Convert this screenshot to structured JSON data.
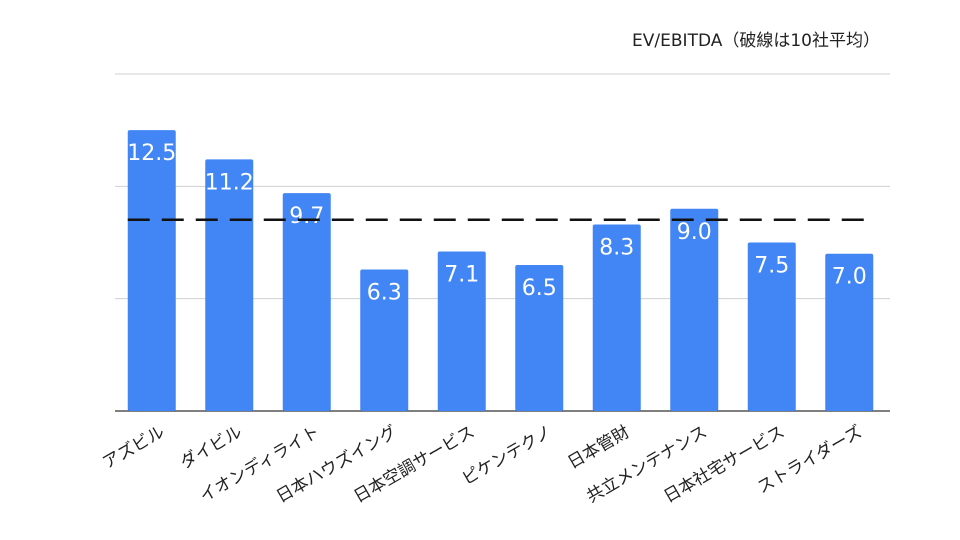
{
  "chart_data": {
    "type": "bar",
    "title": "EV/EBITDA（破線は10社平均）",
    "categories": [
      "アズビル",
      "ダイビル",
      "イオンディライト",
      "日本ハウズイング",
      "日本空調サービス",
      "ピケンテクノ",
      "日本管財",
      "共立メンテナンス",
      "日本社宅サービス",
      "ストライダーズ"
    ],
    "values": [
      12.5,
      11.2,
      9.7,
      6.3,
      7.1,
      6.5,
      8.3,
      9.0,
      7.5,
      7.0
    ],
    "average": 8.51,
    "ylim": [
      0,
      15
    ],
    "gridlines": [
      0,
      5,
      10,
      15
    ],
    "bar_color": "#4285f4",
    "average_line": "dashed",
    "xlabel": "",
    "ylabel": ""
  }
}
